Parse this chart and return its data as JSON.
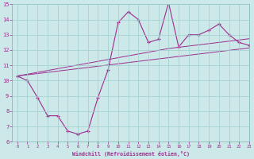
{
  "xlabel": "Windchill (Refroidissement éolien,°C)",
  "x": [
    0,
    1,
    2,
    3,
    4,
    5,
    6,
    7,
    8,
    9,
    10,
    11,
    12,
    13,
    14,
    15,
    16,
    17,
    18,
    19,
    20,
    21,
    22,
    23
  ],
  "y_main": [
    10.3,
    10.0,
    8.9,
    7.7,
    7.7,
    6.7,
    6.5,
    6.7,
    8.9,
    10.7,
    13.8,
    14.5,
    14.0,
    12.5,
    12.7,
    15.1,
    12.2,
    13.0,
    13.0,
    13.3,
    13.7,
    13.0,
    12.5,
    12.3
  ],
  "y_line1": [
    10.3,
    10.38,
    10.46,
    10.54,
    10.62,
    10.7,
    10.78,
    10.86,
    10.94,
    11.02,
    11.1,
    11.18,
    11.26,
    11.34,
    11.42,
    11.5,
    11.58,
    11.66,
    11.74,
    11.82,
    11.9,
    11.98,
    12.06,
    12.14
  ],
  "y_line2": [
    10.3,
    10.42,
    10.54,
    10.66,
    10.78,
    10.9,
    11.02,
    11.14,
    11.26,
    11.38,
    11.5,
    11.62,
    11.74,
    11.86,
    11.98,
    12.1,
    12.18,
    12.26,
    12.34,
    12.42,
    12.5,
    12.58,
    12.66,
    12.74
  ],
  "line_color": "#9b2d8e",
  "bg_color": "#cce8e8",
  "grid_color": "#9fcfcf",
  "ylim": [
    6,
    15
  ],
  "xlim": [
    -0.5,
    23
  ],
  "yticks": [
    6,
    7,
    8,
    9,
    10,
    11,
    12,
    13,
    14,
    15
  ],
  "xticks": [
    0,
    1,
    2,
    3,
    4,
    5,
    6,
    7,
    8,
    9,
    10,
    11,
    12,
    13,
    14,
    15,
    16,
    17,
    18,
    19,
    20,
    21,
    22,
    23
  ]
}
